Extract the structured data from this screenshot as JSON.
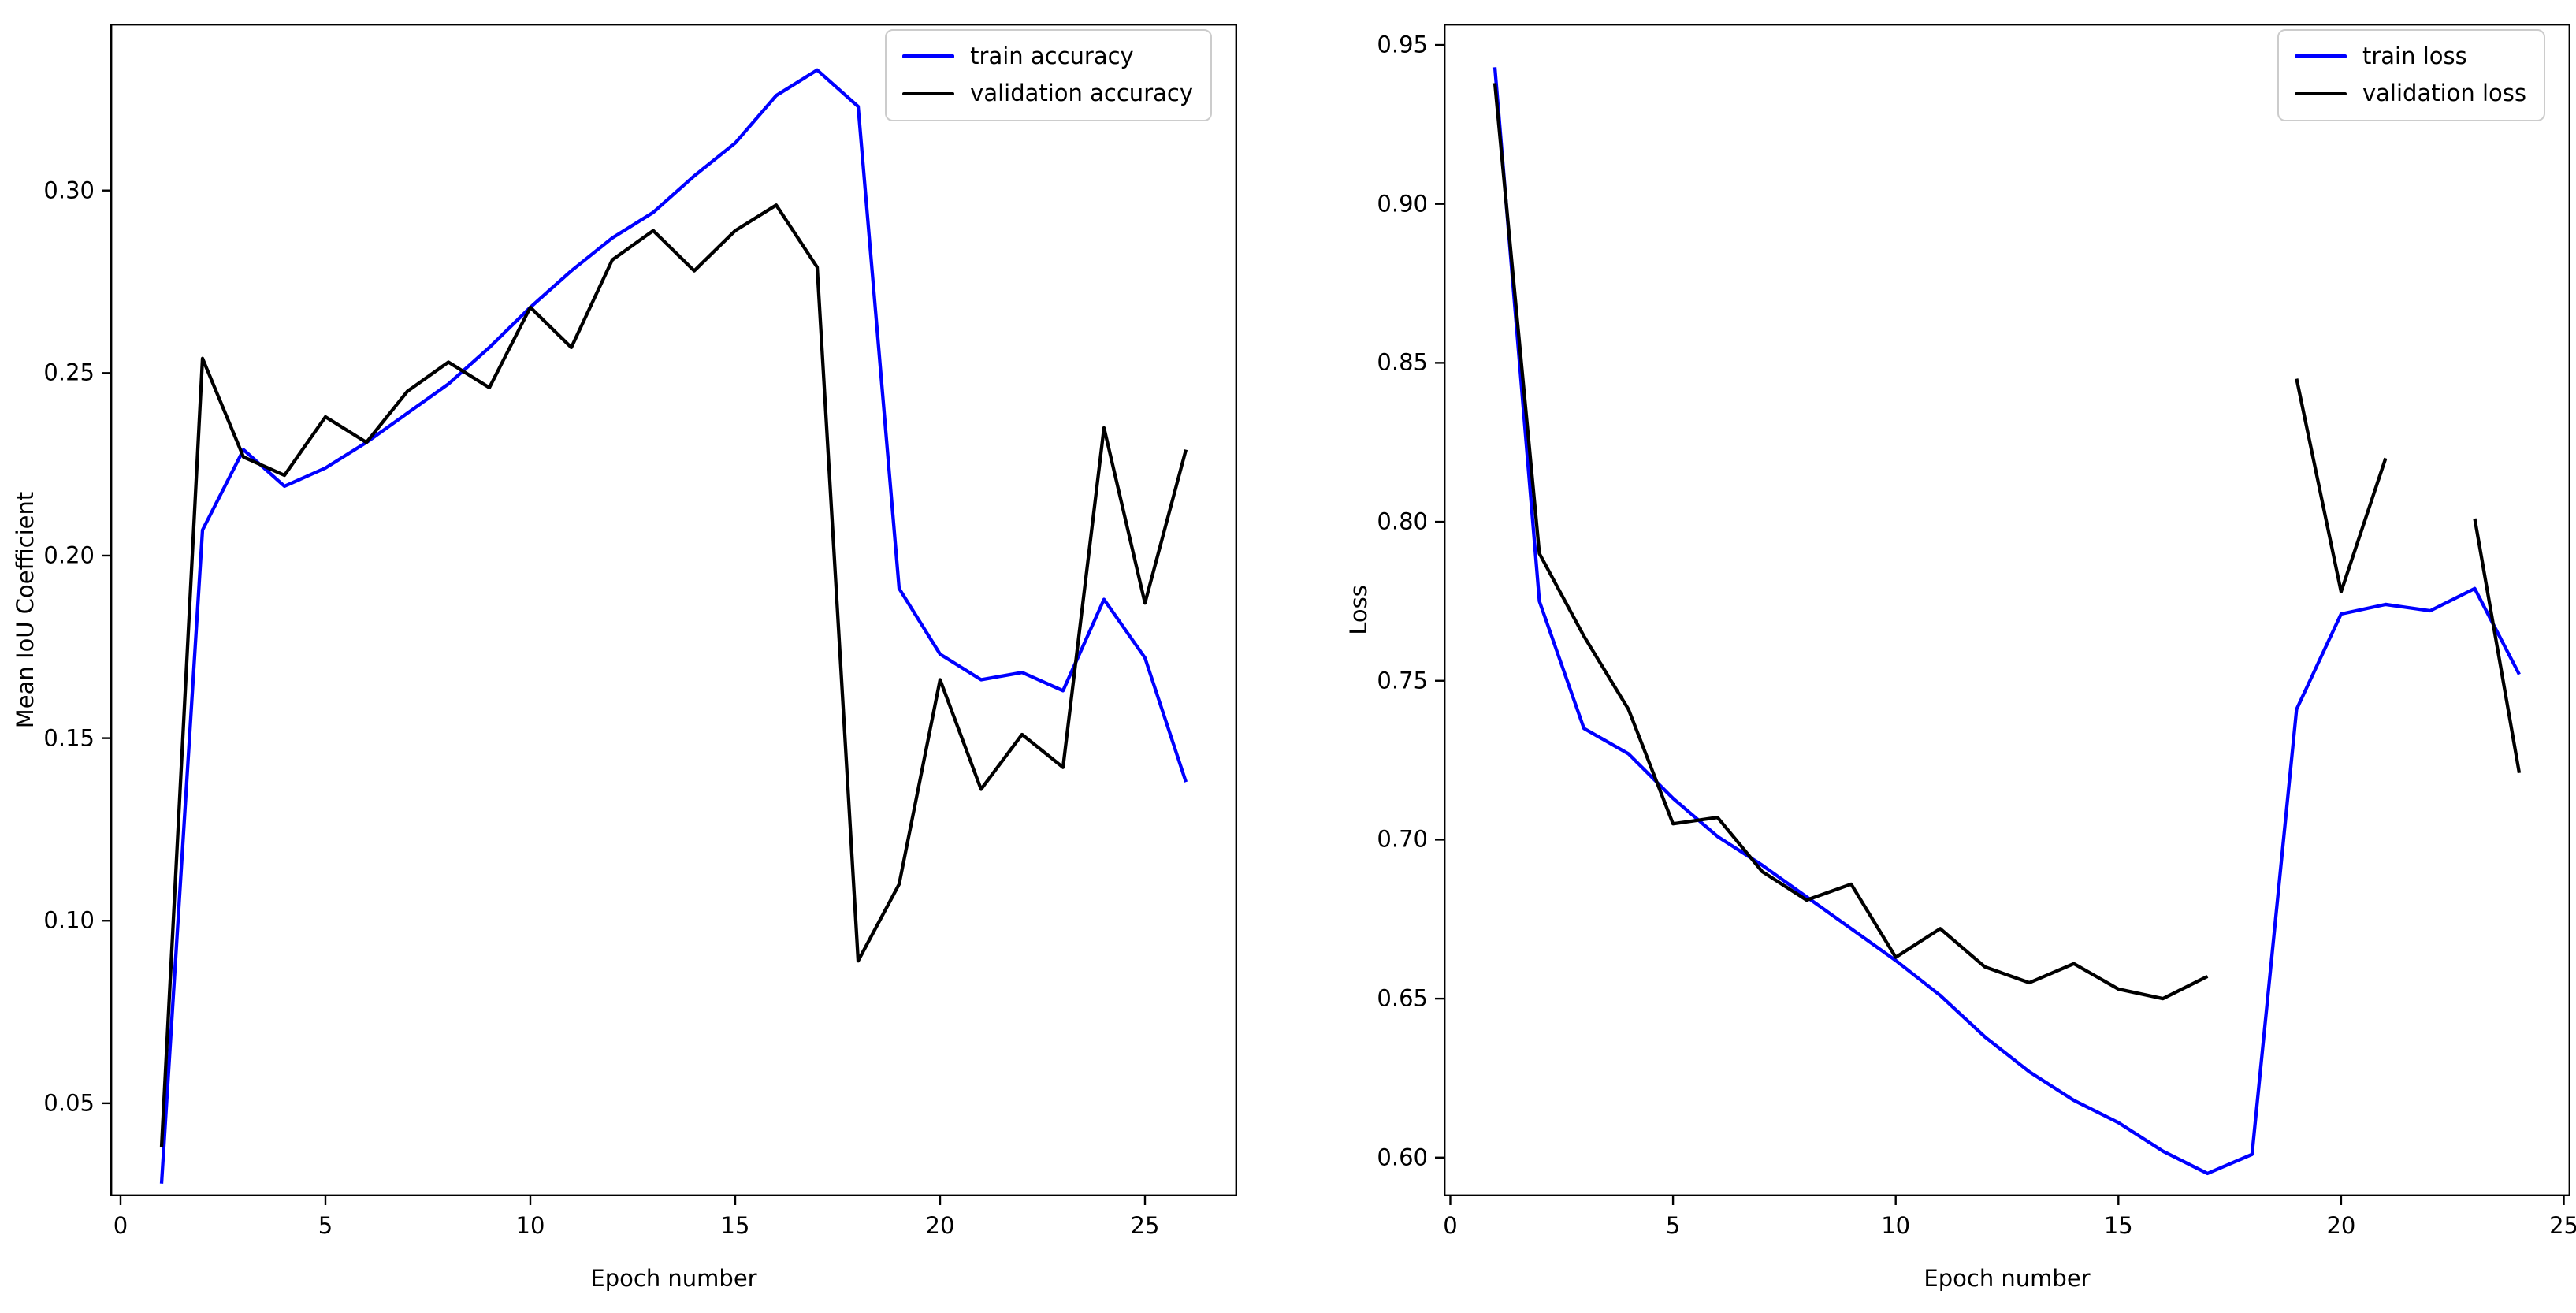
{
  "figure": {
    "background": "#ffffff",
    "accent_blue": "#0000ff",
    "accent_black": "#000000"
  },
  "chart_data": [
    {
      "id": "mean-iou",
      "type": "line",
      "title": "",
      "xlabel": "Epoch number",
      "ylabel": "Mean IoU Coefficient",
      "xlim": [
        -0.25,
        27.25
      ],
      "ylim": [
        0.0245,
        0.3457
      ],
      "grid": false,
      "legend_position": "upper right",
      "xticks": [
        0,
        5,
        10,
        15,
        20,
        25
      ],
      "xtick_labels": [
        "0",
        "5",
        "10",
        "15",
        "20",
        "25"
      ],
      "yticks": [
        0.05,
        0.1,
        0.15,
        0.2,
        0.25,
        0.3
      ],
      "ytick_labels": [
        "0.05",
        "0.10",
        "0.15",
        "0.20",
        "0.25",
        "0.30"
      ],
      "x": [
        1,
        2,
        3,
        4,
        5,
        6,
        7,
        8,
        9,
        10,
        11,
        12,
        13,
        14,
        15,
        16,
        17,
        18,
        19,
        20,
        21,
        22,
        23,
        24,
        25,
        26
      ],
      "series": [
        {
          "name": "train accuracy",
          "color": "#0000ff",
          "values": [
            0.028,
            0.207,
            0.229,
            0.219,
            0.224,
            0.231,
            0.239,
            0.247,
            0.257,
            0.268,
            0.278,
            0.287,
            0.294,
            0.304,
            0.313,
            0.326,
            0.333,
            0.323,
            0.191,
            0.173,
            0.166,
            0.168,
            0.163,
            0.188,
            0.172,
            0.138
          ]
        },
        {
          "name": "validation accuracy",
          "color": "#000000",
          "values": [
            0.038,
            0.254,
            0.227,
            0.222,
            0.238,
            0.231,
            0.245,
            0.253,
            0.246,
            0.268,
            0.257,
            0.281,
            0.289,
            0.278,
            0.289,
            0.296,
            0.279,
            0.089,
            0.11,
            0.166,
            0.136,
            0.151,
            0.142,
            0.235,
            0.187,
            0.229
          ]
        }
      ]
    },
    {
      "id": "loss",
      "type": "line",
      "title": "",
      "xlabel": "Epoch number",
      "ylabel": "Loss",
      "xlim": [
        -0.15,
        25.15
      ],
      "ylim": [
        0.5878,
        0.9567
      ],
      "grid": false,
      "legend_position": "upper right",
      "xticks": [
        0,
        5,
        10,
        15,
        20,
        25
      ],
      "xtick_labels": [
        "0",
        "5",
        "10",
        "15",
        "20",
        "25"
      ],
      "yticks": [
        0.6,
        0.65,
        0.7,
        0.75,
        0.8,
        0.85,
        0.9,
        0.95
      ],
      "ytick_labels": [
        "0.60",
        "0.65",
        "0.70",
        "0.75",
        "0.80",
        "0.85",
        "0.90",
        "0.95"
      ],
      "x": [
        1,
        2,
        3,
        4,
        5,
        6,
        7,
        8,
        9,
        10,
        11,
        12,
        13,
        14,
        15,
        16,
        17,
        18,
        19,
        20,
        21,
        22,
        23,
        24
      ],
      "series": [
        {
          "name": "train loss",
          "color": "#0000ff",
          "values": [
            0.943,
            0.775,
            0.735,
            0.727,
            0.713,
            0.701,
            0.692,
            0.682,
            0.672,
            0.662,
            0.651,
            0.638,
            0.627,
            0.618,
            0.611,
            0.602,
            0.595,
            0.601,
            0.741,
            0.771,
            0.774,
            0.772,
            0.779,
            0.752
          ]
        },
        {
          "name": "validation loss",
          "color": "#000000",
          "values": [
            0.938,
            0.79,
            0.764,
            0.741,
            0.705,
            0.707,
            0.69,
            0.681,
            0.686,
            0.663,
            0.672,
            0.66,
            0.655,
            0.661,
            0.653,
            0.65,
            0.657,
            null,
            0.845,
            0.778,
            0.82,
            null,
            0.801,
            0.721
          ]
        }
      ]
    }
  ]
}
